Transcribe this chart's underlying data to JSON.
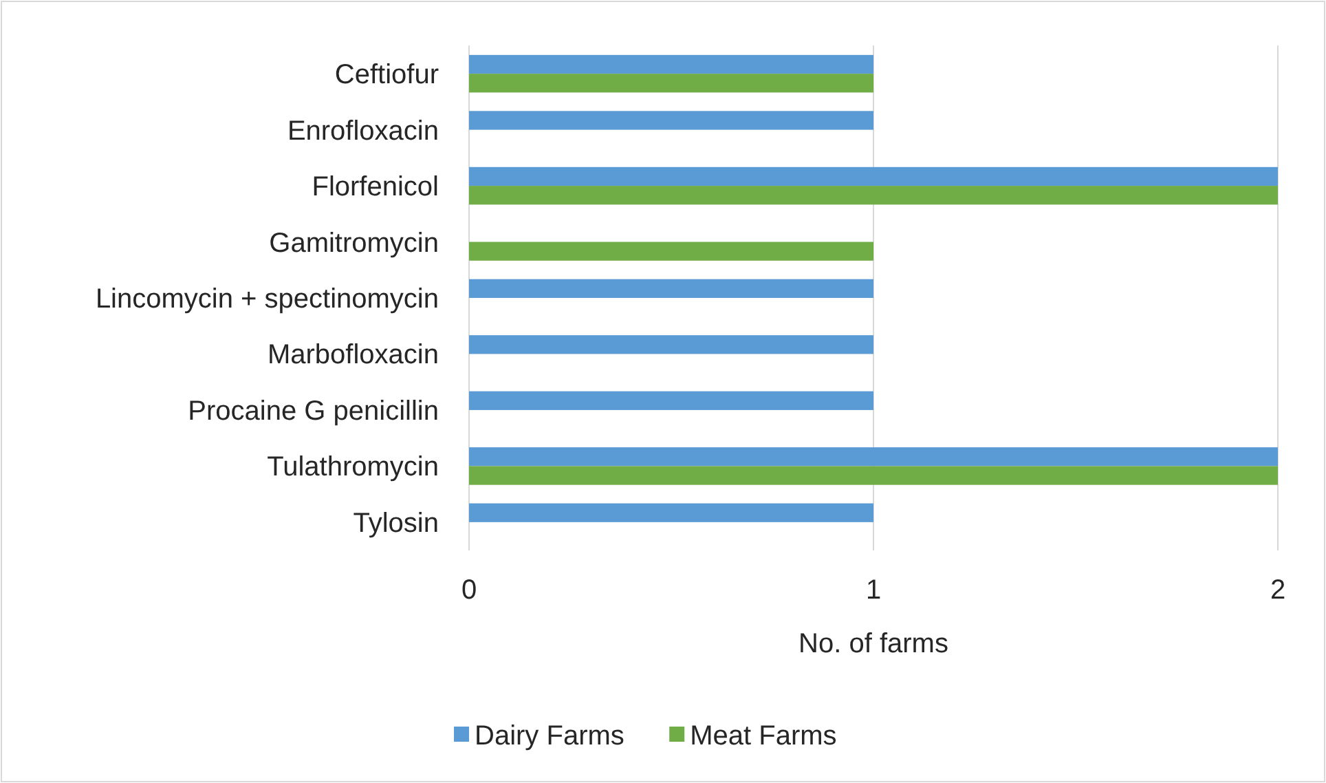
{
  "chart_data": {
    "type": "bar",
    "orientation": "horizontal",
    "xlabel": "No. of farms",
    "categories": [
      "Ceftiofur",
      "Enrofloxacin",
      "Florfenicol",
      "Gamitromycin",
      "Lincomycin + spectinomycin",
      "Marbofloxacin",
      "Procaine G penicillin",
      "Tulathromycin",
      "Tylosin"
    ],
    "series": [
      {
        "name": "Dairy Farms",
        "color": "#5b9bd5",
        "values": [
          1,
          1,
          2,
          0,
          1,
          1,
          1,
          2,
          1
        ]
      },
      {
        "name": "Meat Farms",
        "color": "#70ad47",
        "values": [
          1,
          0,
          2,
          1,
          0,
          0,
          0,
          2,
          0
        ]
      }
    ],
    "xlim": [
      0,
      2
    ],
    "xticks": [
      0,
      1,
      2
    ],
    "grid": "x",
    "legend": "bottom"
  }
}
